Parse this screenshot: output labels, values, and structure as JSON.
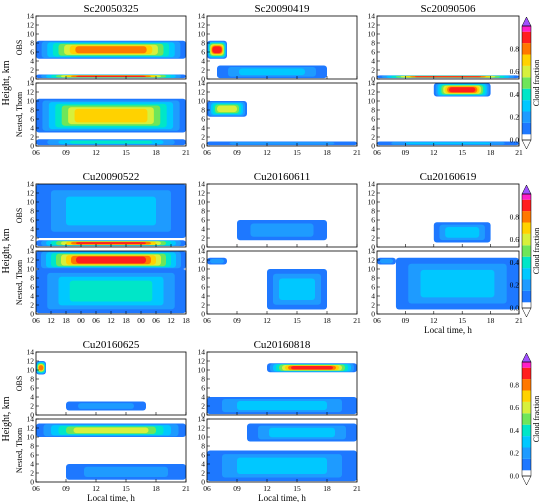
{
  "chart_data": [
    {
      "type": "heatmap",
      "title": "Sc20050325",
      "row_labels": [
        "OBS",
        "Nested, Thom"
      ],
      "ylabel": "Height, km",
      "x_ticks": [
        "06",
        "09",
        "12",
        "15",
        "18",
        "21"
      ],
      "y_ticks": [
        "0",
        "2",
        "4",
        "6",
        "8",
        "10",
        "12",
        "14"
      ],
      "xlim": [
        6,
        21
      ],
      "ylim": [
        0,
        14
      ],
      "obs_clouds": [
        {
          "x0": 6,
          "x1": 21,
          "y0": 4.5,
          "y1": 8.5,
          "peak": 0.8
        },
        {
          "x0": 6,
          "x1": 21,
          "y0": 0.2,
          "y1": 1.0,
          "peak": 0.9
        }
      ],
      "model_clouds": [
        {
          "x0": 6,
          "x1": 21,
          "y0": 3.0,
          "y1": 10.5,
          "peak": 0.7
        },
        {
          "x0": 6,
          "x1": 21,
          "y0": 0.2,
          "y1": 1.5,
          "peak": 0.4
        }
      ]
    },
    {
      "type": "heatmap",
      "title": "Sc20090419",
      "row_labels": [
        "",
        ""
      ],
      "x_ticks": [
        "06",
        "09",
        "12",
        "15",
        "18",
        "21"
      ],
      "y_ticks": [
        "0",
        "2",
        "4",
        "6",
        "8",
        "10",
        "12",
        "14"
      ],
      "xlim": [
        6,
        21
      ],
      "ylim": [
        0,
        14
      ],
      "obs_clouds": [
        {
          "x0": 6,
          "x1": 8,
          "y0": 4.5,
          "y1": 8.5,
          "peak": 0.95
        },
        {
          "x0": 7,
          "x1": 18,
          "y0": 0.2,
          "y1": 3.0,
          "peak": 0.3
        }
      ],
      "model_clouds": [
        {
          "x0": 6,
          "x1": 10,
          "y0": 6.5,
          "y1": 10.0,
          "peak": 0.6
        },
        {
          "x0": 6,
          "x1": 21,
          "y0": 0.2,
          "y1": 1.0,
          "peak": 0.2
        }
      ]
    },
    {
      "type": "heatmap",
      "title": "Sc20090506",
      "row_labels": [
        "",
        ""
      ],
      "x_ticks": [
        "06",
        "09",
        "12",
        "15",
        "18",
        "21"
      ],
      "y_ticks": [
        "0",
        "2",
        "4",
        "6",
        "8",
        "10",
        "12",
        "14"
      ],
      "xlim": [
        6,
        21
      ],
      "ylim": [
        0,
        14
      ],
      "obs_clouds": [
        {
          "x0": 6,
          "x1": 21,
          "y0": 0.2,
          "y1": 0.8,
          "peak": 0.9
        }
      ],
      "model_clouds": [
        {
          "x0": 12,
          "x1": 18,
          "y0": 11.0,
          "y1": 14.0,
          "peak": 0.95
        },
        {
          "x0": 6,
          "x1": 21,
          "y0": 0.2,
          "y1": 1.0,
          "peak": 0.3
        }
      ]
    },
    {
      "type": "heatmap",
      "title": "Cu20090522",
      "row_labels": [
        "OBS",
        "Nested, Thom"
      ],
      "ylabel": "Height, km",
      "x_ticks": [
        "06",
        "12",
        "18",
        "00",
        "06",
        "12",
        "18",
        "00",
        "06",
        "12",
        "18"
      ],
      "y_ticks": [
        "0",
        "2",
        "4",
        "6",
        "8",
        "10",
        "12",
        "14"
      ],
      "xlim": [
        6,
        66
      ],
      "ylim": [
        0,
        14
      ],
      "obs_clouds": [
        {
          "x0": 6,
          "x1": 66,
          "y0": 2.0,
          "y1": 14.0,
          "peak": 0.3
        },
        {
          "x0": 6,
          "x1": 66,
          "y0": 0.2,
          "y1": 1.5,
          "peak": 0.9
        }
      ],
      "model_clouds": [
        {
          "x0": 6,
          "x1": 66,
          "y0": 10.0,
          "y1": 14.0,
          "peak": 0.9
        },
        {
          "x0": 6,
          "x1": 66,
          "y0": 0.2,
          "y1": 10.0,
          "peak": 0.4
        }
      ]
    },
    {
      "type": "heatmap",
      "title": "Cu20160611",
      "row_labels": [
        "",
        ""
      ],
      "x_ticks": [
        "06",
        "09",
        "12",
        "15",
        "18",
        "21"
      ],
      "y_ticks": [
        "0",
        "2",
        "4",
        "6",
        "8",
        "10",
        "12",
        "14"
      ],
      "xlim": [
        6,
        21
      ],
      "ylim": [
        0,
        14
      ],
      "obs_clouds": [
        {
          "x0": 9,
          "x1": 18,
          "y0": 1.5,
          "y1": 6.0,
          "peak": 0.2
        }
      ],
      "model_clouds": [
        {
          "x0": 12,
          "x1": 18,
          "y0": 1.0,
          "y1": 10.0,
          "peak": 0.3
        },
        {
          "x0": 6,
          "x1": 8,
          "y0": 11.0,
          "y1": 12.5,
          "peak": 0.2
        }
      ]
    },
    {
      "type": "heatmap",
      "title": "Cu20160619",
      "row_labels": [
        "",
        ""
      ],
      "x_ticks": [
        "06",
        "09",
        "12",
        "15",
        "18",
        "21"
      ],
      "y_ticks": [
        "0",
        "2",
        "4",
        "6",
        "8",
        "10",
        "12",
        "14"
      ],
      "xlim": [
        6,
        21
      ],
      "ylim": [
        0,
        14
      ],
      "obs_clouds": [
        {
          "x0": 12,
          "x1": 18,
          "y0": 1.0,
          "y1": 5.5,
          "peak": 0.3
        }
      ],
      "model_clouds": [
        {
          "x0": 8,
          "x1": 21,
          "y0": 1.0,
          "y1": 12.5,
          "peak": 0.35
        },
        {
          "x0": 6,
          "x1": 8,
          "y0": 11.0,
          "y1": 12.5,
          "peak": 0.2
        }
      ]
    },
    {
      "type": "heatmap",
      "title": "Cu20160625",
      "row_labels": [
        "OBS",
        "Nested, Thom"
      ],
      "ylabel": "Height, km",
      "x_ticks": [
        "06",
        "09",
        "12",
        "15",
        "18",
        "21"
      ],
      "y_ticks": [
        "0",
        "2",
        "4",
        "6",
        "8",
        "10",
        "12",
        "14"
      ],
      "xlim": [
        6,
        21
      ],
      "ylim": [
        0,
        14
      ],
      "obs_clouds": [
        {
          "x0": 6,
          "x1": 7,
          "y0": 9.0,
          "y1": 12.0,
          "peak": 0.8
        },
        {
          "x0": 9,
          "x1": 17,
          "y0": 1.0,
          "y1": 3.0,
          "peak": 0.2
        }
      ],
      "model_clouds": [
        {
          "x0": 6,
          "x1": 21,
          "y0": 10.0,
          "y1": 13.0,
          "peak": 0.55
        },
        {
          "x0": 9,
          "x1": 21,
          "y0": 0.5,
          "y1": 4.0,
          "peak": 0.2
        }
      ]
    },
    {
      "type": "heatmap",
      "title": "Cu20160818",
      "row_labels": [
        "",
        ""
      ],
      "x_ticks": [
        "06",
        "09",
        "12",
        "15",
        "18",
        "21"
      ],
      "y_ticks": [
        "0",
        "2",
        "4",
        "6",
        "8",
        "10",
        "12",
        "14"
      ],
      "xlim": [
        6,
        21
      ],
      "ylim": [
        0,
        14
      ],
      "obs_clouds": [
        {
          "x0": 12,
          "x1": 21,
          "y0": 9.5,
          "y1": 11.5,
          "peak": 0.9
        },
        {
          "x0": 6,
          "x1": 21,
          "y0": 0.2,
          "y1": 4.0,
          "peak": 0.25
        }
      ],
      "model_clouds": [
        {
          "x0": 10,
          "x1": 21,
          "y0": 9.0,
          "y1": 13.0,
          "peak": 0.25
        },
        {
          "x0": 6,
          "x1": 21,
          "y0": 0.2,
          "y1": 7.0,
          "peak": 0.3
        }
      ]
    }
  ],
  "colorbar": {
    "label": "Cloud fraction",
    "ticks": [
      "0.0",
      "0.2",
      "0.4",
      "0.6",
      "0.8"
    ],
    "range": [
      0,
      1
    ],
    "levels": [
      {
        "value": 0.0,
        "color": "#ffffff"
      },
      {
        "value": 0.05,
        "color": "#1e78ff"
      },
      {
        "value": 0.15,
        "color": "#1e9bff"
      },
      {
        "value": 0.25,
        "color": "#00c8ff"
      },
      {
        "value": 0.35,
        "color": "#00e6c8"
      },
      {
        "value": 0.45,
        "color": "#6ee65a"
      },
      {
        "value": 0.55,
        "color": "#d7f03c"
      },
      {
        "value": 0.65,
        "color": "#ffd200"
      },
      {
        "value": 0.75,
        "color": "#ff7800"
      },
      {
        "value": 0.85,
        "color": "#ff1e1e"
      },
      {
        "value": 0.95,
        "color": "#ff1ec8"
      },
      {
        "value": 1.0,
        "color": "#a050ff"
      }
    ]
  },
  "xlabel": "Local time, h"
}
